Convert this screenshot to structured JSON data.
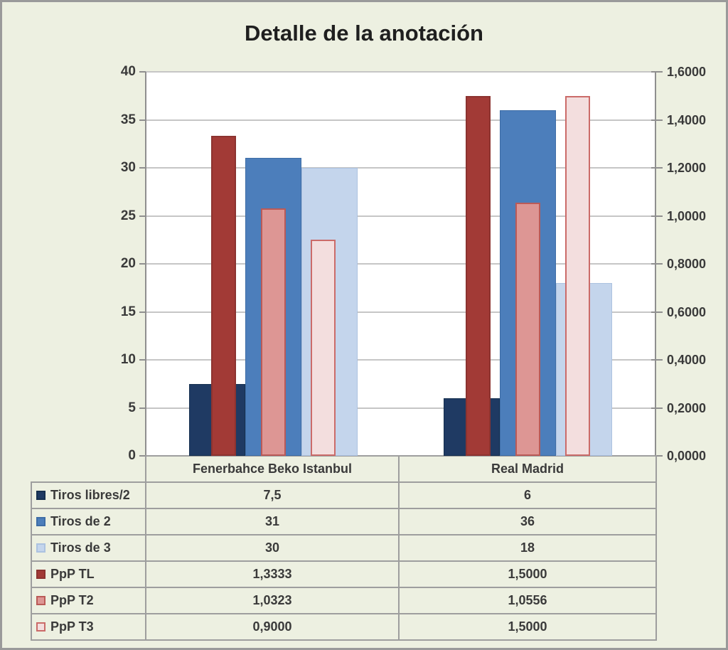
{
  "title": "Detalle de la anotación",
  "colors": {
    "chart_background": "#edf0e1",
    "plot_background": "#ffffff",
    "gridline": "#c6c6c6",
    "axis_line": "#8f8f8f",
    "table_border": "#9e9e9e",
    "text": "#3a3a3a"
  },
  "chart_data": {
    "type": "bar",
    "title": "Detalle de la anotación",
    "legend_position": "data-table-left-keys",
    "grid": "horizontal-major",
    "categories": [
      "Fenerbahce Beko Istanbul",
      "Real Madrid"
    ],
    "series": [
      {
        "name": "Tiros libres/2",
        "axis": "left",
        "values": [
          7.5,
          6
        ],
        "display": [
          "7,5",
          "6"
        ],
        "fill": "#1F3A63",
        "border": "#16304f"
      },
      {
        "name": "Tiros de 2",
        "axis": "left",
        "values": [
          31,
          36
        ],
        "display": [
          "31",
          "36"
        ],
        "fill": "#4C7EBB",
        "border": "#3e6da6"
      },
      {
        "name": "Tiros de 3",
        "axis": "left",
        "values": [
          30,
          18
        ],
        "display": [
          "30",
          "18"
        ],
        "fill": "#C4D5EC",
        "border": "#acc2e0"
      },
      {
        "name": "PpP TL",
        "axis": "right",
        "values": [
          1.3333,
          1.5
        ],
        "display": [
          "1,3333",
          "1,5000"
        ],
        "fill": "#A23A36",
        "border": "#8c3330"
      },
      {
        "name": "PpP T2",
        "axis": "right",
        "values": [
          1.0323,
          1.0556
        ],
        "display": [
          "1,0323",
          "1,0556"
        ],
        "fill": "#DD9694",
        "border": "#ba5a57"
      },
      {
        "name": "PpP T3",
        "axis": "right",
        "values": [
          0.9,
          1.5
        ],
        "display": [
          "0,9000",
          "1,5000"
        ],
        "fill": "#F3DEDE",
        "border": "#cb6b69"
      }
    ],
    "left_axis": {
      "min": 0,
      "max": 40,
      "step": 5,
      "labels": [
        "0",
        "5",
        "10",
        "15",
        "20",
        "25",
        "30",
        "35",
        "40"
      ]
    },
    "right_axis": {
      "min": 0,
      "max": 1.6,
      "step": 0.2,
      "labels": [
        "0,0000",
        "0,2000",
        "0,4000",
        "0,6000",
        "0,8000",
        "1,0000",
        "1,2000",
        "1,4000",
        "1,6000"
      ]
    }
  }
}
